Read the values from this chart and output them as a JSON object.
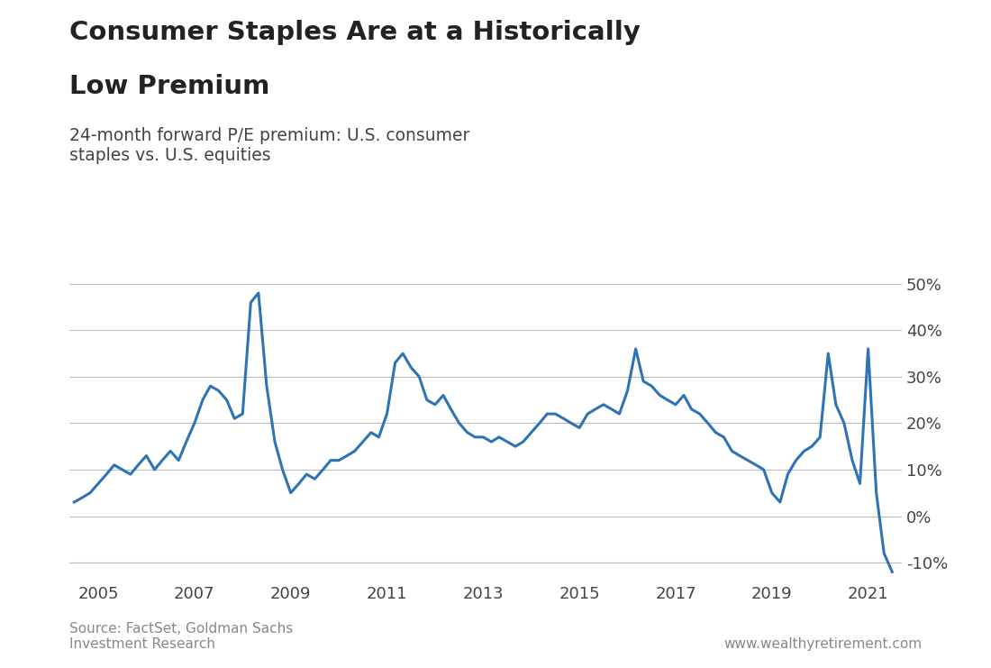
{
  "title_line1": "Consumer Staples Are at a Historically",
  "title_line2": "Low Premium",
  "subtitle": "24-month forward P/E premium: U.S. consumer\nstaples vs. U.S. equities",
  "source_text": "Source: FactSet, Goldman Sachs\nInvestment Research",
  "website_text": "www.wealthyretirement.com",
  "line_color": "#2E74B5",
  "background_color": "#FFFFFF",
  "grid_color": "#BBBBBB",
  "ylim": [
    -14,
    55
  ],
  "yticks": [
    -10,
    0,
    10,
    20,
    30,
    40,
    50
  ],
  "ytick_labels": [
    "-10%",
    "0%",
    "10%",
    "20%",
    "30%",
    "40%",
    "50%"
  ],
  "x_data": [
    2004.5,
    2004.67,
    2004.83,
    2005.0,
    2005.17,
    2005.33,
    2005.5,
    2005.67,
    2005.83,
    2006.0,
    2006.17,
    2006.33,
    2006.5,
    2006.67,
    2006.83,
    2007.0,
    2007.17,
    2007.33,
    2007.5,
    2007.67,
    2007.83,
    2008.0,
    2008.17,
    2008.33,
    2008.5,
    2008.67,
    2008.83,
    2009.0,
    2009.17,
    2009.33,
    2009.5,
    2009.67,
    2009.83,
    2010.0,
    2010.17,
    2010.33,
    2010.5,
    2010.67,
    2010.83,
    2011.0,
    2011.17,
    2011.33,
    2011.5,
    2011.67,
    2011.83,
    2012.0,
    2012.17,
    2012.33,
    2012.5,
    2012.67,
    2012.83,
    2013.0,
    2013.17,
    2013.33,
    2013.5,
    2013.67,
    2013.83,
    2014.0,
    2014.17,
    2014.33,
    2014.5,
    2014.67,
    2014.83,
    2015.0,
    2015.17,
    2015.33,
    2015.5,
    2015.67,
    2015.83,
    2016.0,
    2016.17,
    2016.33,
    2016.5,
    2016.67,
    2016.83,
    2017.0,
    2017.17,
    2017.33,
    2017.5,
    2017.67,
    2017.83,
    2018.0,
    2018.17,
    2018.33,
    2018.5,
    2018.67,
    2018.83,
    2019.0,
    2019.17,
    2019.33,
    2019.5,
    2019.67,
    2019.83,
    2020.0,
    2020.17,
    2020.33,
    2020.5,
    2020.67,
    2020.83,
    2021.0,
    2021.17,
    2021.33,
    2021.5
  ],
  "y_data": [
    3,
    4,
    5,
    7,
    9,
    11,
    10,
    9,
    11,
    13,
    10,
    12,
    14,
    12,
    16,
    20,
    25,
    28,
    27,
    25,
    21,
    22,
    46,
    48,
    28,
    16,
    10,
    5,
    7,
    9,
    8,
    10,
    12,
    12,
    13,
    14,
    16,
    18,
    17,
    22,
    33,
    35,
    32,
    30,
    25,
    24,
    26,
    23,
    20,
    18,
    17,
    17,
    16,
    17,
    16,
    15,
    16,
    18,
    20,
    22,
    22,
    21,
    20,
    19,
    22,
    23,
    24,
    23,
    22,
    27,
    36,
    29,
    28,
    26,
    25,
    24,
    26,
    23,
    22,
    20,
    18,
    17,
    14,
    13,
    12,
    11,
    10,
    5,
    3,
    9,
    12,
    14,
    15,
    17,
    35,
    24,
    20,
    12,
    7,
    36,
    5,
    -8,
    -12
  ],
  "xticks": [
    2005,
    2007,
    2009,
    2011,
    2013,
    2015,
    2017,
    2019,
    2021
  ],
  "xtick_labels": [
    "2005",
    "2007",
    "2009",
    "2011",
    "2013",
    "2015",
    "2017",
    "2019",
    "2021"
  ],
  "xlim": [
    2004.4,
    2021.7
  ]
}
